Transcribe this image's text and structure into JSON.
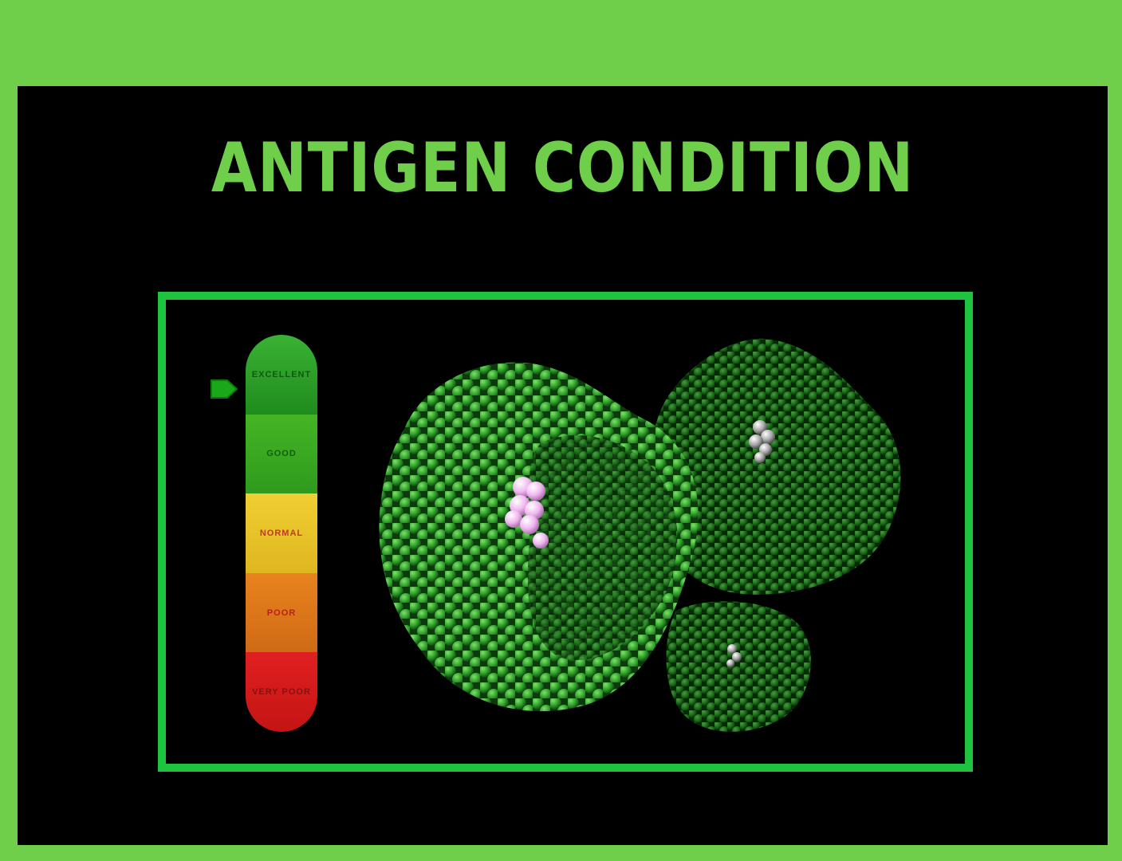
{
  "page": {
    "title": "ANTIGEN CONDITION"
  },
  "meter": {
    "current_level": "EXCELLENT",
    "levels": [
      {
        "label": "EXCELLENT",
        "color": "#2a9a25",
        "text_color": "#0e5a0e"
      },
      {
        "label": "GOOD",
        "color": "#3faa22",
        "text_color": "#125e10"
      },
      {
        "label": "NORMAL",
        "color": "#e8c62a",
        "text_color": "#c0392b"
      },
      {
        "label": "POOR",
        "color": "#e07a1c",
        "text_color": "#b8201a"
      },
      {
        "label": "VERY POOR",
        "color": "#d81c1c",
        "text_color": "#8a1010"
      }
    ]
  },
  "colors": {
    "frame": "#6fce4a",
    "viewer_border": "#1ec43f",
    "background": "#000000",
    "ligand_pink": "#f0b8f0",
    "ligand_gray": "#bfbfbf"
  },
  "icons": {
    "pointer": "pointer-arrow-icon",
    "molecule": "protein-molecule-icon"
  }
}
